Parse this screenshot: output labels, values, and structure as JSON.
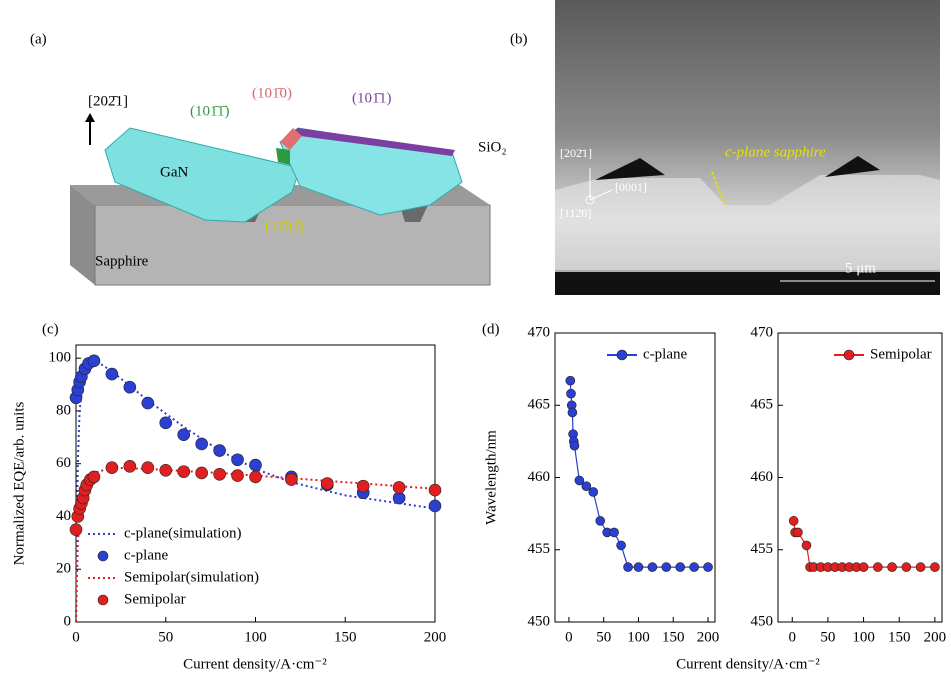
{
  "panel_a": {
    "label": "(a)",
    "direction": "[202̄1]",
    "crystal": "GaN",
    "facet_green": "(101̄1̄)",
    "facet_red": "(101̄0)",
    "facet_purple": "(101̄1)",
    "mask": "SiO₂",
    "facet_yellow": "(11̄01̄)",
    "substrate": "Sapphire"
  },
  "panel_b": {
    "label": "(b)",
    "axis_up": "[202̄1]",
    "axis_right": "[0001]",
    "axis_out": "[112̄0]",
    "annotation": "c-plane sapphire",
    "scale_bar": "5 μm"
  },
  "chart_data": [
    {
      "type": "line",
      "label": "(c)",
      "xlabel": "Current density/A·cm⁻²",
      "ylabel": "Normalized EQE/arb. units",
      "xlim": [
        0,
        200
      ],
      "ylim": [
        0,
        105
      ],
      "xticks": [
        0,
        50,
        100,
        150,
        200
      ],
      "yticks": [
        0,
        20,
        40,
        60,
        80,
        100
      ],
      "legend": "lower left",
      "series": [
        {
          "name": "c-plane(simulation)",
          "color": "#2b3fd0",
          "style": "dotted",
          "x": [
            0,
            1,
            2,
            4,
            7,
            10,
            20,
            40,
            60,
            80,
            100,
            120,
            150,
            200
          ],
          "values": [
            0,
            60,
            80,
            92,
            98,
            99.5,
            95,
            84,
            74,
            65,
            58,
            53,
            48,
            43
          ]
        },
        {
          "name": "c-plane",
          "color": "#2b3fd0",
          "style": "markers",
          "x": [
            0,
            1,
            2,
            3,
            5,
            7,
            10,
            20,
            30,
            40,
            50,
            60,
            70,
            80,
            90,
            100,
            120,
            140,
            160,
            180,
            200
          ],
          "values": [
            85,
            88,
            91,
            93,
            96,
            98,
            99,
            94,
            89,
            83,
            75.5,
            71,
            67.5,
            65,
            61.5,
            59.5,
            55,
            52,
            49,
            47,
            44
          ]
        },
        {
          "name": "Semipolar(simulation)",
          "color": "#e02020",
          "style": "dotted",
          "x": [
            0,
            1,
            3,
            6,
            10,
            20,
            40,
            80,
            120,
            160,
            200
          ],
          "values": [
            0,
            30,
            45,
            53,
            56.5,
            58.5,
            58,
            56.5,
            54.5,
            52.5,
            50.5
          ]
        },
        {
          "name": "Semipolar",
          "color": "#e02020",
          "style": "markers",
          "x": [
            0,
            1,
            2,
            3,
            4,
            5,
            6,
            8,
            10,
            20,
            30,
            40,
            50,
            60,
            70,
            80,
            90,
            100,
            120,
            140,
            160,
            180,
            200
          ],
          "values": [
            35,
            40,
            43,
            45,
            47,
            50,
            52,
            54,
            55,
            58.5,
            59,
            58.5,
            57.5,
            57,
            56.5,
            56,
            55.5,
            55,
            54,
            52.5,
            51.5,
            51,
            50
          ]
        }
      ]
    },
    {
      "type": "line",
      "label": "(d)",
      "xlabel": "Current density/A·cm⁻²",
      "ylabel": "Wavelength/nm",
      "xlim": [
        -20,
        210
      ],
      "ylim": [
        450,
        470
      ],
      "xticks": [
        0,
        50,
        100,
        150,
        200
      ],
      "yticks": [
        450,
        455,
        460,
        465,
        470
      ],
      "legend": "upper right",
      "series": [
        {
          "name": "c-plane",
          "color": "#2b3fd0",
          "style": "line-markers",
          "x": [
            2,
            3,
            4,
            5,
            6,
            7,
            8,
            15,
            25,
            35,
            45,
            55,
            65,
            75,
            85,
            100,
            120,
            140,
            160,
            180,
            200
          ],
          "values": [
            466.7,
            465.8,
            465,
            464.5,
            463,
            462.5,
            462.2,
            459.8,
            459.4,
            459,
            457,
            456.2,
            456.2,
            455.3,
            453.8,
            453.8,
            453.8,
            453.8,
            453.8,
            453.8,
            453.8
          ]
        }
      ]
    },
    {
      "type": "line",
      "xlim": [
        -20,
        210
      ],
      "ylim": [
        450,
        470
      ],
      "xticks": [
        0,
        50,
        100,
        150,
        200
      ],
      "yticks": [
        450,
        455,
        460,
        465,
        470
      ],
      "legend": "upper right",
      "series": [
        {
          "name": "Semipolar",
          "color": "#e02020",
          "style": "line-markers",
          "x": [
            2,
            4,
            8,
            20,
            25,
            30,
            40,
            50,
            60,
            70,
            80,
            90,
            100,
            120,
            140,
            160,
            180,
            200
          ],
          "values": [
            457,
            456.2,
            456.2,
            455.3,
            453.8,
            453.8,
            453.8,
            453.8,
            453.8,
            453.8,
            453.8,
            453.8,
            453.8,
            453.8,
            453.8,
            453.8,
            453.8,
            453.8
          ]
        }
      ]
    }
  ]
}
